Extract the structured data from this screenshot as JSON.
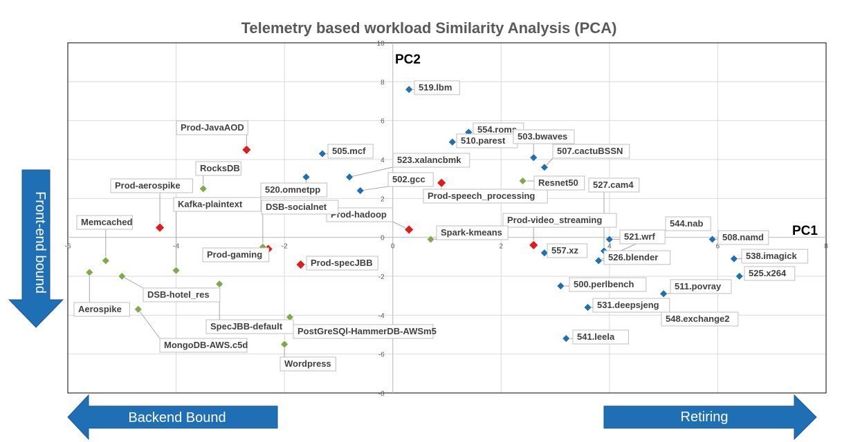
{
  "chart_data": {
    "type": "scatter",
    "title": "Telemetry based workload Similarity Analysis (PCA)",
    "xlabel": "PC1",
    "ylabel": "PC2",
    "xlim": [
      -6,
      8
    ],
    "ylim": [
      -8,
      10
    ],
    "x_ticks": [
      "-6",
      "-4",
      "-2",
      "0",
      "2",
      "4",
      "6",
      "8"
    ],
    "y_ticks": [
      "10",
      "8",
      "6",
      "4",
      "2",
      "0",
      "-2",
      "-4",
      "-6",
      "-8"
    ],
    "grid": true,
    "colors": {
      "spec": "#1f6fb4",
      "prod": "#e31a1c",
      "other": "#7faa4a"
    },
    "points": [
      {
        "label": "519.lbm",
        "x": 0.3,
        "y": 7.6,
        "group": "spec"
      },
      {
        "label": "554.roms",
        "x": 1.4,
        "y": 5.4,
        "group": "spec"
      },
      {
        "label": "510.parest",
        "x": 1.1,
        "y": 4.9,
        "group": "spec"
      },
      {
        "label": "503.bwaves",
        "x": 2.6,
        "y": 4.1,
        "group": "spec"
      },
      {
        "label": "507.cactuBSSN",
        "x": 2.8,
        "y": 3.6,
        "group": "spec"
      },
      {
        "label": "505.mcf",
        "x": -1.3,
        "y": 4.3,
        "group": "spec"
      },
      {
        "label": "523.xalancbmk",
        "x": -0.8,
        "y": 3.1,
        "group": "spec"
      },
      {
        "label": "520.omnetpp",
        "x": -1.6,
        "y": 3.1,
        "group": "spec"
      },
      {
        "label": "502.gcc",
        "x": -0.6,
        "y": 2.4,
        "group": "spec"
      },
      {
        "label": "527.cam4",
        "x": 3.9,
        "y": -0.7,
        "group": "spec"
      },
      {
        "label": "521.wrf",
        "x": 4.0,
        "y": -0.1,
        "group": "spec"
      },
      {
        "label": "544.nab",
        "x": 3.8,
        "y": -1.2,
        "group": "spec"
      },
      {
        "label": "526.blender",
        "x": 3.8,
        "y": -1.2,
        "group": "spec"
      },
      {
        "label": "508.namd",
        "x": 5.9,
        "y": -0.1,
        "group": "spec"
      },
      {
        "label": "538.imagick",
        "x": 6.3,
        "y": -1.1,
        "group": "spec"
      },
      {
        "label": "525.x264",
        "x": 6.4,
        "y": -2.0,
        "group": "spec"
      },
      {
        "label": "557.xz",
        "x": 2.8,
        "y": -0.8,
        "group": "spec"
      },
      {
        "label": "500.perlbench",
        "x": 3.1,
        "y": -2.5,
        "group": "spec"
      },
      {
        "label": "511.povray",
        "x": 5.0,
        "y": -2.9,
        "group": "spec"
      },
      {
        "label": "531.deepsjeng",
        "x": 3.6,
        "y": -3.6,
        "group": "spec"
      },
      {
        "label": "548.exchange2",
        "x": 3.6,
        "y": -3.6,
        "group": "spec"
      },
      {
        "label": "541.leela",
        "x": 3.2,
        "y": -5.2,
        "group": "spec"
      },
      {
        "label": "Prod-JavaAOD",
        "x": -2.7,
        "y": 4.5,
        "group": "prod"
      },
      {
        "label": "Prod-aerospike",
        "x": -4.3,
        "y": 0.5,
        "group": "prod"
      },
      {
        "label": "Prod-speech_processing",
        "x": 0.9,
        "y": 2.8,
        "group": "prod"
      },
      {
        "label": "Prod-hadoop",
        "x": 0.3,
        "y": 0.4,
        "group": "prod"
      },
      {
        "label": "Prod-video_streaming",
        "x": 2.6,
        "y": -0.4,
        "group": "prod"
      },
      {
        "label": "Prod-specJBB",
        "x": -1.7,
        "y": -1.4,
        "group": "prod"
      },
      {
        "label": "Prod-gaming",
        "x": -2.3,
        "y": -0.6,
        "group": "prod"
      },
      {
        "label": "RocksDB",
        "x": -3.5,
        "y": 2.5,
        "group": "other"
      },
      {
        "label": "Resnet50",
        "x": 2.4,
        "y": 2.9,
        "group": "other"
      },
      {
        "label": "Spark-kmeans",
        "x": 0.7,
        "y": -0.1,
        "group": "other"
      },
      {
        "label": "Kafka-plaintext",
        "x": -4.0,
        "y": -1.7,
        "group": "other"
      },
      {
        "label": "DSB-socialnet",
        "x": -2.4,
        "y": -0.5,
        "group": "other"
      },
      {
        "label": "Memcached",
        "x": -5.3,
        "y": -1.2,
        "group": "other"
      },
      {
        "label": "Aerospike",
        "x": -5.6,
        "y": -1.8,
        "group": "other"
      },
      {
        "label": "DSB-hotel_res",
        "x": -5.0,
        "y": -2.0,
        "group": "other"
      },
      {
        "label": "MongoDB-AWS.c5d",
        "x": -4.7,
        "y": -3.7,
        "group": "other"
      },
      {
        "label": "SpecJBB-default",
        "x": -3.2,
        "y": -2.4,
        "group": "other"
      },
      {
        "label": "PostGreSQl-HammerDB-AWSm5",
        "x": -1.9,
        "y": -4.1,
        "group": "other"
      },
      {
        "label": "Wordpress",
        "x": -2.0,
        "y": -5.5,
        "group": "other"
      }
    ]
  },
  "arrows": {
    "left": "Backend Bound",
    "right": "Retiring",
    "down": "Front-end bound"
  }
}
